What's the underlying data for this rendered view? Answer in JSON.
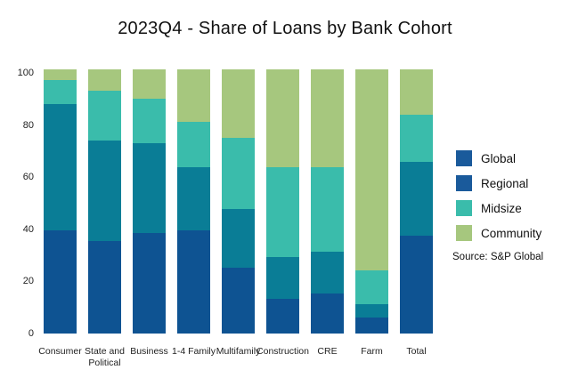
{
  "title": "2023Q4 - Share of Loans by Bank Cohort",
  "source_note": "Source: S&P Global",
  "legend": {
    "position": "right",
    "items": [
      {
        "label": "Global",
        "swatch_color": "#1A5A9B"
      },
      {
        "label": "Regional",
        "swatch_color": "#1A5A9B"
      },
      {
        "label": "Midsize",
        "swatch_color": "#3ABCAB"
      },
      {
        "label": "Community",
        "swatch_color": "#A6C77E"
      }
    ]
  },
  "chart_data": {
    "type": "bar",
    "stacked": true,
    "unit": "percent share",
    "title": "2023Q4 - Share of Loans by Bank Cohort",
    "categories": [
      "Consumer",
      "State and Political",
      "Business",
      "1-4 Family",
      "Multifamily",
      "Construction",
      "CRE",
      "Farm",
      "Total"
    ],
    "category_label_lines": [
      [
        "Consumer"
      ],
      [
        "State and",
        "Political"
      ],
      [
        "Business"
      ],
      [
        "1-4 Family"
      ],
      [
        "Multifamily"
      ],
      [
        "Construction"
      ],
      [
        "CRE"
      ],
      [
        "Farm"
      ],
      [
        "Total"
      ]
    ],
    "series": [
      {
        "name": "Global",
        "color": "#0E5392",
        "values": [
          39,
          35,
          38,
          39,
          25,
          13,
          15,
          6,
          37
        ]
      },
      {
        "name": "Regional",
        "color": "#0A7D96",
        "values": [
          48,
          38,
          34,
          24,
          22,
          16,
          16,
          5,
          28
        ]
      },
      {
        "name": "Midsize",
        "color": "#3ABCAB",
        "values": [
          9,
          19,
          17,
          17,
          27,
          34,
          32,
          13,
          18
        ]
      },
      {
        "name": "Community",
        "color": "#A6C77E",
        "values": [
          4,
          8,
          11,
          20,
          26,
          37,
          37,
          76,
          17
        ]
      }
    ],
    "ylim": [
      0,
      100
    ],
    "yticks": [
      0,
      20,
      40,
      60,
      80,
      100
    ],
    "grid": false,
    "legend_position": "right",
    "xlabel": "",
    "ylabel": ""
  }
}
